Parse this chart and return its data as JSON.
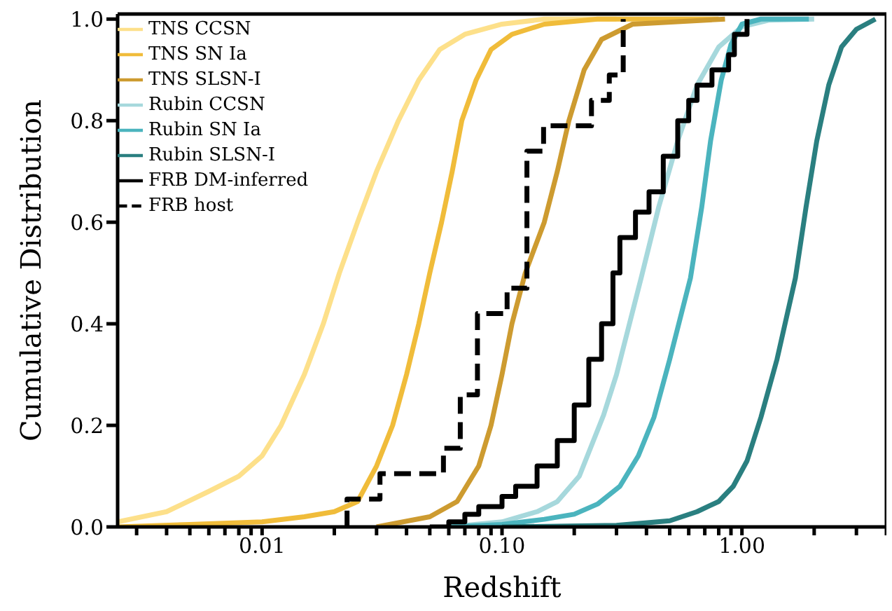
{
  "chart_data": {
    "type": "line",
    "xlabel": "Redshift",
    "ylabel": "Cumulative Distribution",
    "log": "x",
    "legend": "top left",
    "grid": false,
    "line_style": "solid",
    "marker": "none",
    "xlim": [
      0.0025,
      4
    ],
    "ylim": [
      0,
      1.01
    ],
    "xticks": [
      {
        "value": 0.003,
        "label": null
      },
      {
        "value": 0.004,
        "label": null
      },
      {
        "value": 0.005,
        "label": null
      },
      {
        "value": 0.006,
        "label": null
      },
      {
        "value": 0.007,
        "label": null
      },
      {
        "value": 0.008,
        "label": null
      },
      {
        "value": 0.009,
        "label": null
      },
      {
        "value": 0.01,
        "label": "0.01"
      },
      {
        "value": 0.02,
        "label": null
      },
      {
        "value": 0.03,
        "label": null
      },
      {
        "value": 0.04,
        "label": null
      },
      {
        "value": 0.05,
        "label": null
      },
      {
        "value": 0.06,
        "label": null
      },
      {
        "value": 0.07,
        "label": null
      },
      {
        "value": 0.08,
        "label": null
      },
      {
        "value": 0.09,
        "label": null
      },
      {
        "value": 0.1,
        "label": "0.10"
      },
      {
        "value": 0.2,
        "label": null
      },
      {
        "value": 0.3,
        "label": null
      },
      {
        "value": 0.4,
        "label": null
      },
      {
        "value": 0.5,
        "label": null
      },
      {
        "value": 0.6,
        "label": null
      },
      {
        "value": 0.7,
        "label": null
      },
      {
        "value": 0.8,
        "label": null
      },
      {
        "value": 0.9,
        "label": null
      },
      {
        "value": 1,
        "label": "1.00"
      },
      {
        "value": 2,
        "label": null
      },
      {
        "value": 3,
        "label": null
      },
      {
        "value": 4,
        "label": null
      }
    ],
    "yticks": [
      {
        "value": 0,
        "label": "0.0"
      },
      {
        "value": 0.2,
        "label": "0.2"
      },
      {
        "value": 0.4,
        "label": "0.4"
      },
      {
        "value": 0.6,
        "label": "0.6"
      },
      {
        "value": 0.8,
        "label": "0.8"
      },
      {
        "value": 1,
        "label": "1.0"
      }
    ],
    "series": [
      {
        "name": "TNS CCSN",
        "color": "#fde08a",
        "x": [
          0.0025,
          0.004,
          0.006,
          0.008,
          0.01,
          0.012,
          0.015,
          0.018,
          0.021,
          0.025,
          0.03,
          0.037,
          0.045,
          0.055,
          0.07,
          0.1,
          0.15,
          0.3
        ],
        "values": [
          0.01,
          0.03,
          0.07,
          0.1,
          0.14,
          0.2,
          0.3,
          0.4,
          0.5,
          0.6,
          0.7,
          0.8,
          0.88,
          0.94,
          0.97,
          0.99,
          1,
          1
        ]
      },
      {
        "name": "TNS SN Ia",
        "color": "#f0bc3a",
        "x": [
          0.0025,
          0.005,
          0.01,
          0.015,
          0.02,
          0.025,
          0.03,
          0.035,
          0.04,
          0.045,
          0.05,
          0.056,
          0.062,
          0.068,
          0.078,
          0.09,
          0.11,
          0.15,
          0.25,
          0.8
        ],
        "values": [
          0,
          0.005,
          0.01,
          0.02,
          0.03,
          0.05,
          0.12,
          0.2,
          0.3,
          0.4,
          0.5,
          0.6,
          0.7,
          0.8,
          0.88,
          0.94,
          0.97,
          0.99,
          1,
          1
        ]
      },
      {
        "name": "TNS SLSN-I",
        "color": "#cd9b30",
        "x": [
          0.03,
          0.05,
          0.065,
          0.08,
          0.09,
          0.1,
          0.11,
          0.125,
          0.15,
          0.17,
          0.19,
          0.22,
          0.26,
          0.35,
          0.85
        ],
        "values": [
          0,
          0.02,
          0.05,
          0.12,
          0.2,
          0.3,
          0.4,
          0.5,
          0.6,
          0.7,
          0.8,
          0.9,
          0.96,
          0.99,
          1
        ]
      },
      {
        "name": "Rubin CCSN",
        "color": "#a6d8dc",
        "x": [
          0.06,
          0.1,
          0.14,
          0.17,
          0.21,
          0.265,
          0.3,
          0.38,
          0.45,
          0.54,
          0.65,
          0.8,
          1,
          1.3,
          2
        ],
        "values": [
          0,
          0.01,
          0.03,
          0.05,
          0.1,
          0.22,
          0.3,
          0.49,
          0.63,
          0.76,
          0.87,
          0.945,
          0.985,
          0.998,
          1
        ]
      },
      {
        "name": "Rubin SN Ia",
        "color": "#4bb4be",
        "x": [
          0.06,
          0.1,
          0.15,
          0.2,
          0.25,
          0.31,
          0.37,
          0.43,
          0.5,
          0.61,
          0.68,
          0.74,
          0.82,
          0.9,
          1,
          1.2,
          1.9
        ],
        "values": [
          0,
          0.005,
          0.015,
          0.025,
          0.045,
          0.08,
          0.14,
          0.216,
          0.33,
          0.49,
          0.63,
          0.76,
          0.88,
          0.95,
          0.99,
          1,
          1
        ]
      },
      {
        "name": "Rubin SLSN-I",
        "color": "#2a7f80",
        "x": [
          0.1,
          0.3,
          0.5,
          0.65,
          0.8,
          0.92,
          1.05,
          1.2,
          1.4,
          1.67,
          1.85,
          2.05,
          2.3,
          2.6,
          3,
          3.6
        ],
        "values": [
          0,
          0.003,
          0.012,
          0.03,
          0.05,
          0.08,
          0.13,
          0.216,
          0.33,
          0.49,
          0.63,
          0.76,
          0.87,
          0.945,
          0.98,
          1
        ]
      },
      {
        "name": "FRB DM-inferred",
        "color": "#000000",
        "type": "step",
        "x": [
          0.05,
          0.06,
          0.07,
          0.08,
          0.1,
          0.114,
          0.14,
          0.17,
          0.2,
          0.23,
          0.26,
          0.29,
          0.31,
          0.36,
          0.41,
          0.47,
          0.54,
          0.6,
          0.65,
          0.75,
          0.88,
          0.93,
          1.05
        ],
        "values": [
          0,
          0.01,
          0.025,
          0.04,
          0.06,
          0.08,
          0.12,
          0.17,
          0.24,
          0.33,
          0.4,
          0.5,
          0.57,
          0.62,
          0.66,
          0.73,
          0.8,
          0.84,
          0.87,
          0.9,
          0.93,
          0.97,
          1
        ]
      },
      {
        "name": "FRB host",
        "color": "#000000",
        "type": "step",
        "line_style": "dashed",
        "x": [
          0.0225,
          0.0226,
          0.031,
          0.057,
          0.067,
          0.079,
          0.105,
          0.127,
          0.149,
          0.236,
          0.28,
          0.32
        ],
        "values": [
          0,
          0.055,
          0.105,
          0.155,
          0.26,
          0.42,
          0.47,
          0.74,
          0.79,
          0.84,
          0.89,
          1
        ]
      }
    ]
  }
}
